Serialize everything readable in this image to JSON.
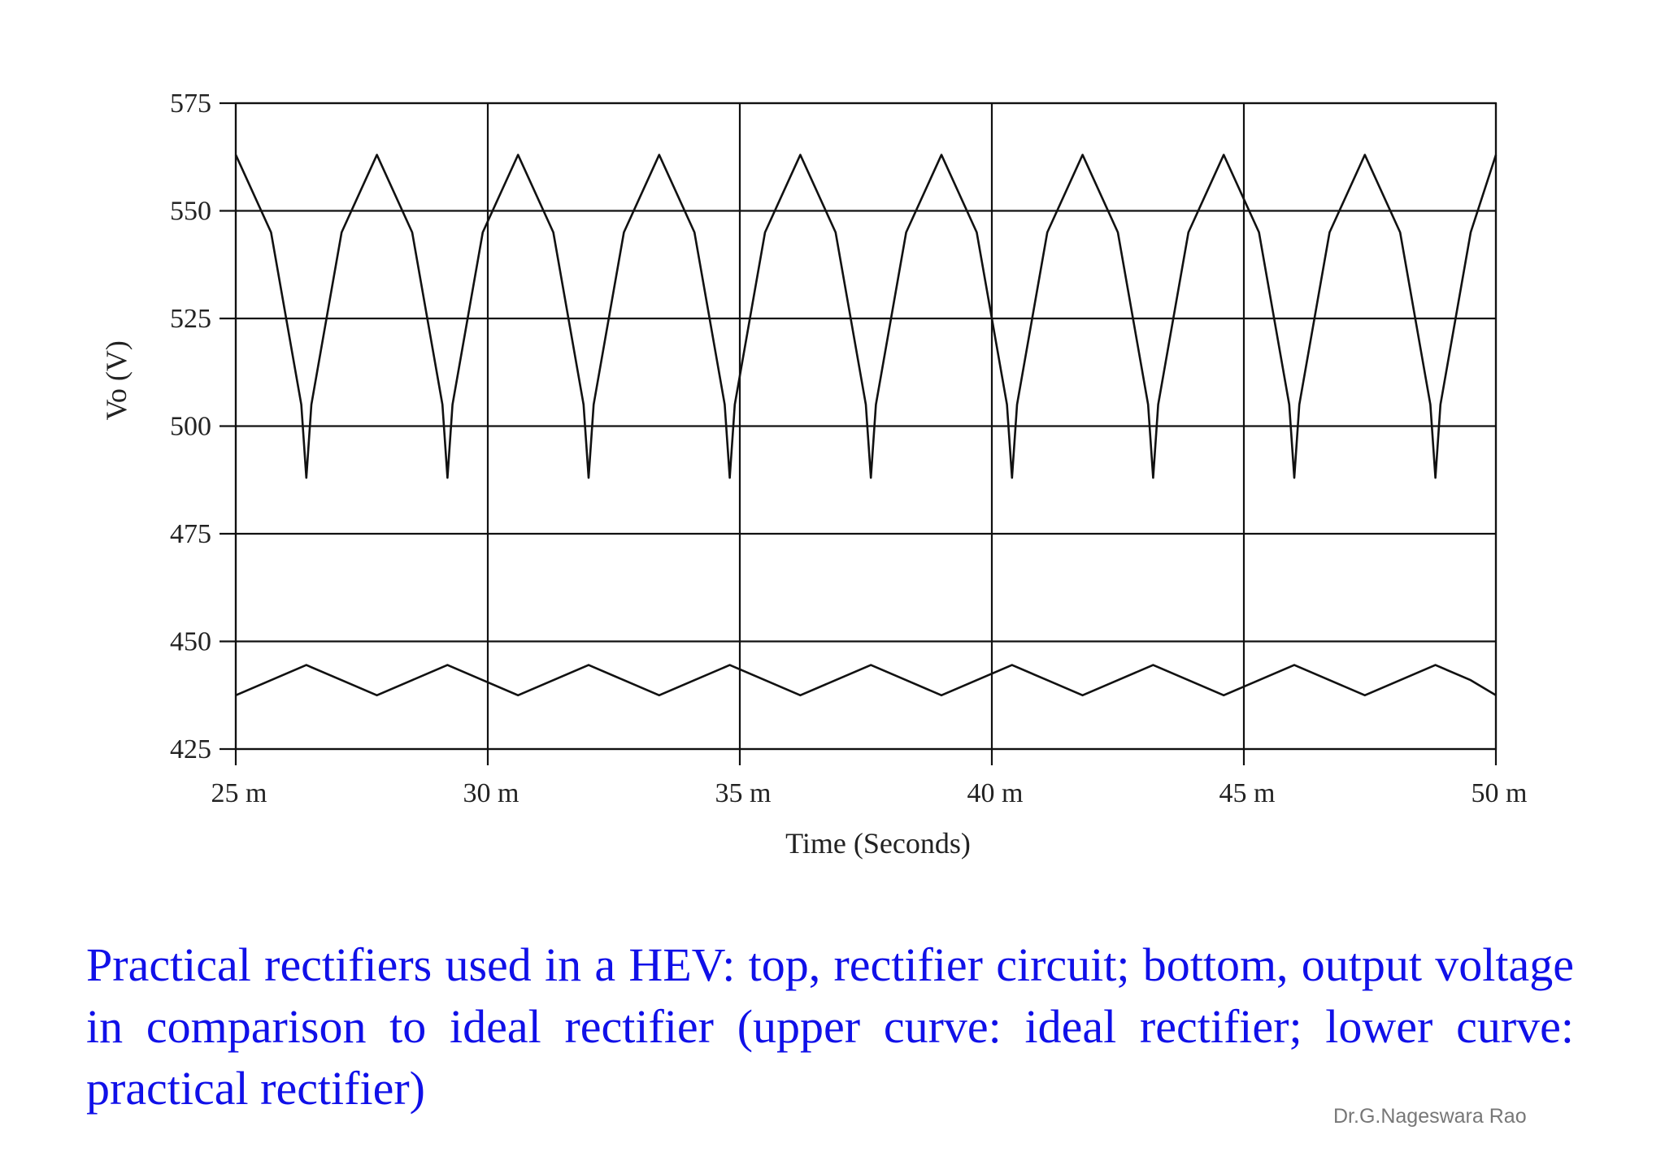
{
  "chart_data": {
    "type": "line",
    "xlabel": "Time (Seconds)",
    "ylabel": "Vo (V)",
    "xlim": [
      25,
      50
    ],
    "ylim": [
      425,
      575
    ],
    "x_unit": "ms",
    "x_ticks": [
      25,
      30,
      35,
      40,
      45,
      50
    ],
    "x_tick_labels": [
      "25 m",
      "30 m",
      "35 m",
      "40 m",
      "45 m",
      "50 m"
    ],
    "y_ticks": [
      425,
      450,
      475,
      500,
      525,
      550,
      575
    ],
    "y_tick_labels": [
      "425",
      "450",
      "475",
      "500",
      "525",
      "550",
      "575"
    ],
    "grid": true,
    "series": [
      {
        "x": [
          25.0,
          25.7,
          26.3,
          26.4,
          26.5,
          27.1,
          27.8,
          28.5,
          29.1,
          29.2,
          29.3,
          29.9,
          30.6,
          31.3,
          31.9,
          32.0,
          32.1,
          32.7,
          33.4,
          34.1,
          34.7,
          34.8,
          34.9,
          35.5,
          36.2,
          36.9,
          37.5,
          37.6,
          37.7,
          38.3,
          39.0,
          39.7,
          40.3,
          40.4,
          40.5,
          41.1,
          41.8,
          42.5,
          43.1,
          43.2,
          43.3,
          43.9,
          44.6,
          45.3,
          45.9,
          46.0,
          46.1,
          46.7,
          47.4,
          48.1,
          48.7,
          48.8,
          48.9,
          49.5,
          50.0
        ],
        "y": [
          563,
          545,
          505,
          488,
          505,
          545,
          563,
          545,
          505,
          488,
          505,
          545,
          563,
          545,
          505,
          488,
          505,
          545,
          563,
          545,
          505,
          488,
          505,
          545,
          563,
          545,
          505,
          488,
          505,
          545,
          563,
          545,
          505,
          488,
          505,
          545,
          563,
          545,
          505,
          488,
          505,
          545,
          563,
          545,
          505,
          488,
          505,
          545,
          563,
          545,
          505,
          488,
          505,
          545,
          563
        ]
      },
      {
        "x": [
          25.0,
          25.7,
          26.4,
          27.1,
          27.8,
          28.5,
          29.2,
          29.9,
          30.6,
          31.3,
          32.0,
          32.7,
          33.4,
          34.1,
          34.8,
          35.5,
          36.2,
          36.9,
          37.6,
          38.3,
          39.0,
          39.7,
          40.4,
          41.1,
          41.8,
          42.5,
          43.2,
          43.9,
          44.6,
          45.3,
          46.0,
          46.7,
          47.4,
          48.1,
          48.8,
          49.5,
          50.0
        ],
        "y": [
          437.5,
          441,
          444.5,
          441,
          437.5,
          441,
          444.5,
          441,
          437.5,
          441,
          444.5,
          441,
          437.5,
          441,
          444.5,
          441,
          437.5,
          441,
          444.5,
          441,
          437.5,
          441,
          444.5,
          441,
          437.5,
          441,
          444.5,
          441,
          437.5,
          441,
          444.5,
          441,
          437.5,
          441,
          444.5,
          441,
          437.5
        ]
      }
    ]
  },
  "caption": "Practical rectifiers used in a HEV: top, rectifier circuit; bottom, output voltage in comparison to ideal rectifier (upper curve: ideal rectifier; lower curve: practical rectifier)",
  "footer": "Dr.G.Nageswara Rao",
  "colors": {
    "caption": "#1010e8",
    "line": "#111111",
    "footer": "#777777"
  }
}
